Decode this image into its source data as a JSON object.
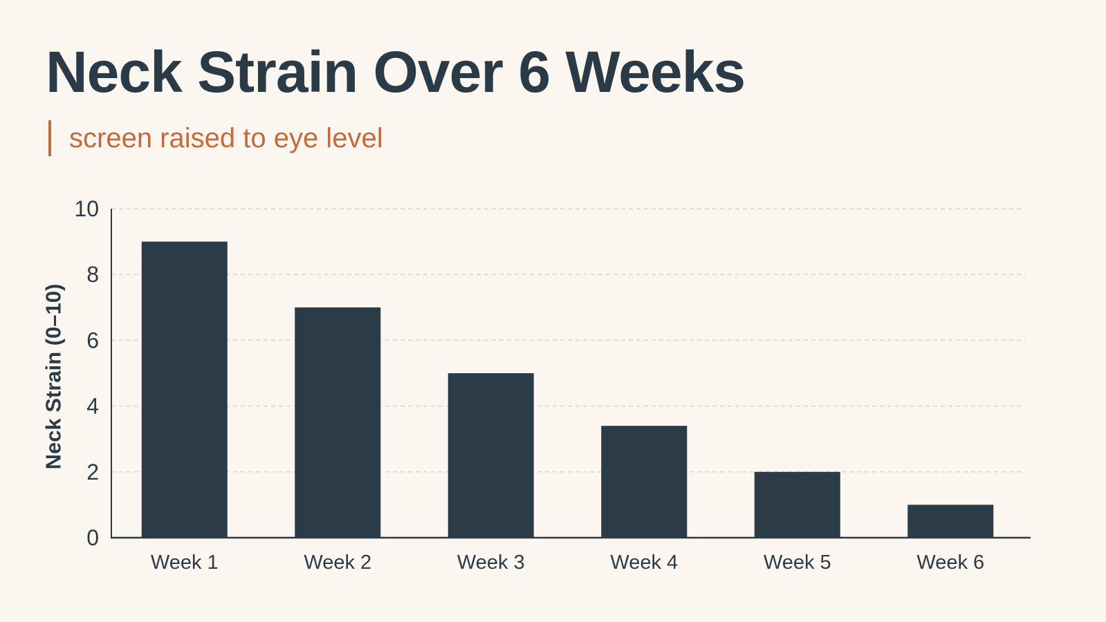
{
  "chart_data": {
    "type": "bar",
    "title": "Neck Strain Over 6 Weeks",
    "subtitle": "screen raised to eye level",
    "categories": [
      "Week 1",
      "Week 2",
      "Week 3",
      "Week 4",
      "Week 5",
      "Week 6"
    ],
    "values": [
      9,
      7,
      5,
      3.4,
      2,
      1
    ],
    "xlabel": "",
    "ylabel": "Neck Strain (0–10)",
    "ylim": [
      0,
      10
    ],
    "yticks": [
      0,
      2,
      4,
      6,
      8,
      10
    ],
    "grid": true,
    "colors": {
      "bar": "#2c3b48",
      "text": "#2b3a47",
      "accent": "#c46a3d",
      "grid": "#d9d4cc",
      "axis": "#2b3a47",
      "background": "#fbf7f0"
    }
  }
}
